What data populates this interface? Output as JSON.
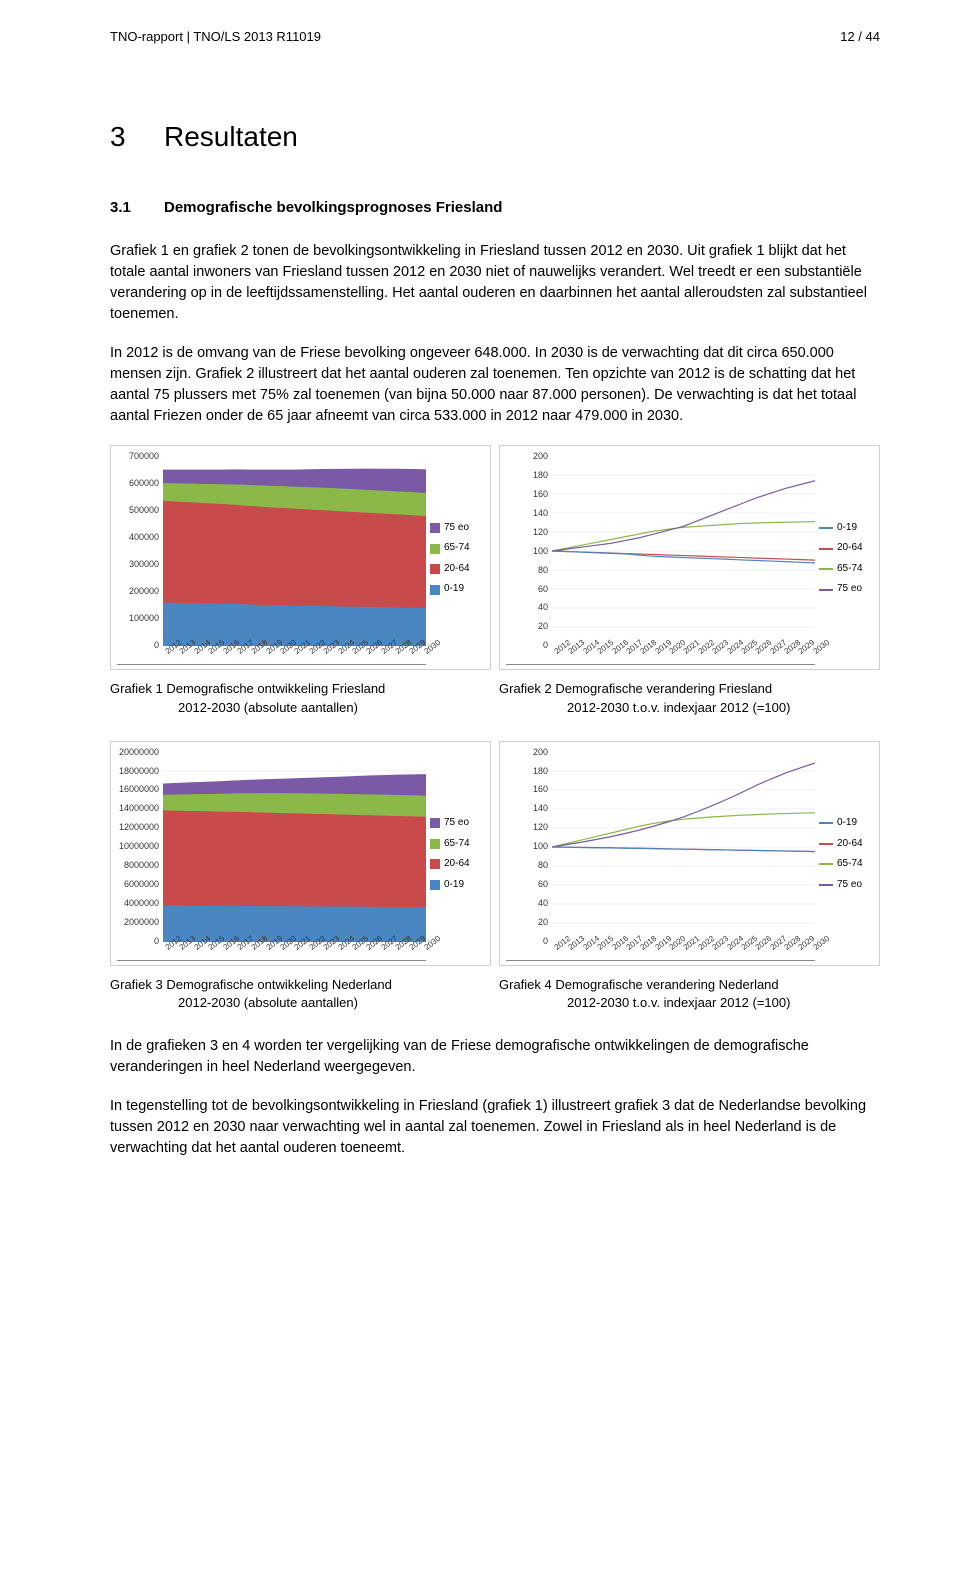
{
  "header": {
    "left": "TNO-rapport | TNO/LS 2013 R11019",
    "right": "12 / 44"
  },
  "section": {
    "num": "3",
    "title": "Resultaten"
  },
  "subsection": {
    "num": "3.1",
    "title": "Demografische bevolkingsprognoses Friesland"
  },
  "para1": "Grafiek 1 en grafiek 2 tonen de bevolkingsontwikkeling in Friesland tussen 2012 en 2030. Uit grafiek 1 blijkt dat het totale aantal inwoners van Friesland tussen 2012 en 2030 niet of nauwelijks verandert. Wel treedt er een substantiële verandering op in de leeftijdssamenstelling. Het aantal ouderen en daarbinnen het aantal alleroudsten zal substantieel toenemen.",
  "para2": "In 2012 is de omvang van de Friese bevolking ongeveer 648.000. In 2030 is de verwachting dat dit circa 650.000 mensen zijn. Grafiek 2 illustreert dat het aantal ouderen zal toenemen. Ten opzichte van 2012 is de schatting dat het aantal 75 plussers met 75% zal toenemen (van bijna 50.000 naar 87.000 personen). De verwachting is dat het totaal aantal Friezen onder de 65 jaar afneemt van circa 533.000 in 2012 naar 479.000 in 2030.",
  "years": [
    "2012",
    "2013",
    "2014",
    "2015",
    "2016",
    "2017",
    "2018",
    "2019",
    "2020",
    "2021",
    "2022",
    "2023",
    "2024",
    "2025",
    "2026",
    "2027",
    "2028",
    "2029",
    "2030"
  ],
  "legend_demo": [
    {
      "label": "75 eo",
      "color": "#7a5aa6"
    },
    {
      "label": "65-74",
      "color": "#8ab94a"
    },
    {
      "label": "20-64",
      "color": "#c84a4a"
    },
    {
      "label": "0-19",
      "color": "#4a86c1"
    }
  ],
  "legend_lines": [
    {
      "label": "0-19",
      "color": "#4a86c1"
    },
    {
      "label": "20-64",
      "color": "#c84a4a"
    },
    {
      "label": "65-74",
      "color": "#8ab94a"
    },
    {
      "label": "75 eo",
      "color": "#7a5aa6"
    }
  ],
  "chart1": {
    "type": "stacked-area",
    "ymax": 700000,
    "ytick_step": 100000,
    "yticks": [
      "700000",
      "600000",
      "500000",
      "400000",
      "300000",
      "200000",
      "100000",
      "0"
    ],
    "series": {
      "019": [
        160000,
        159000,
        158000,
        157000,
        156000,
        155000,
        153000,
        151000,
        150000,
        149000,
        148000,
        147000,
        146000,
        145000,
        144000,
        143000,
        142000,
        141000,
        140000
      ],
      "2064": [
        375000,
        373000,
        371000,
        369000,
        367000,
        365000,
        363000,
        361000,
        359000,
        357000,
        355000,
        353000,
        351000,
        349000,
        347000,
        345000,
        343000,
        341000,
        339000
      ],
      "6574": [
        65000,
        67000,
        69000,
        71000,
        73000,
        75000,
        77000,
        79000,
        80000,
        81000,
        82000,
        83000,
        83500,
        84000,
        84300,
        84600,
        84800,
        84900,
        85000
      ],
      "75eo": [
        50000,
        51000,
        52000,
        53000,
        54000,
        55500,
        57000,
        59000,
        61000,
        63000,
        66000,
        69000,
        72000,
        75000,
        78000,
        80500,
        83000,
        85000,
        87000
      ]
    },
    "colors": {
      "019": "#4a86c1",
      "2064": "#c84a4a",
      "6574": "#8ab94a",
      "75eo": "#7a5aa6"
    }
  },
  "chart2": {
    "type": "line",
    "ymin": 0,
    "ymax": 200,
    "ytick_step": 20,
    "yticks": [
      "200",
      "180",
      "160",
      "140",
      "120",
      "100",
      "80",
      "60",
      "40",
      "20",
      "0"
    ],
    "series": {
      "019": [
        100,
        99.4,
        98.8,
        98.1,
        97.5,
        96.9,
        95.6,
        94.4,
        93.8,
        93.1,
        92.5,
        91.9,
        91.3,
        90.6,
        90.0,
        89.4,
        88.8,
        88.1,
        87.5
      ],
      "2064": [
        100,
        99.5,
        98.9,
        98.4,
        97.9,
        97.3,
        96.8,
        96.3,
        95.7,
        95.2,
        94.7,
        94.1,
        93.6,
        93.1,
        92.5,
        92.0,
        91.5,
        90.9,
        90.4
      ],
      "6574": [
        100,
        103,
        106,
        109,
        112,
        115,
        118,
        121,
        123,
        125,
        126,
        127,
        128,
        129,
        129.5,
        130,
        130.3,
        130.6,
        131
      ],
      "75eo": [
        100,
        102,
        104,
        106,
        108,
        111,
        114,
        118,
        122,
        126,
        132,
        138,
        144,
        150,
        156,
        161,
        166,
        170,
        174
      ]
    },
    "colors": {
      "019": "#4a86c1",
      "2064": "#c84a4a",
      "6574": "#8ab94a",
      "75eo": "#7a5aa6"
    }
  },
  "chart3": {
    "type": "stacked-area",
    "ymax": 20000000,
    "ytick_step": 2000000,
    "yticks": [
      "20000000",
      "18000000",
      "16000000",
      "14000000",
      "12000000",
      "10000000",
      "8000000",
      "6000000",
      "4000000",
      "2000000",
      "0"
    ],
    "series": {
      "019": [
        3850000,
        3840000,
        3830000,
        3820000,
        3810000,
        3800000,
        3790000,
        3780000,
        3770000,
        3760000,
        3750000,
        3740000,
        3730000,
        3720000,
        3710000,
        3700000,
        3690000,
        3680000,
        3670000
      ],
      "2064": [
        10000000,
        9980000,
        9960000,
        9940000,
        9920000,
        9900000,
        9870000,
        9840000,
        9810000,
        9780000,
        9750000,
        9720000,
        9690000,
        9660000,
        9630000,
        9600000,
        9570000,
        9540000,
        9510000
      ],
      "6574": [
        1640000,
        1700000,
        1760000,
        1820000,
        1880000,
        1940000,
        2000000,
        2050000,
        2090000,
        2120000,
        2140000,
        2160000,
        2175000,
        2190000,
        2200000,
        2210000,
        2218000,
        2225000,
        2230000
      ],
      "75eo": [
        1200000,
        1230000,
        1260000,
        1295000,
        1330000,
        1370000,
        1415000,
        1465000,
        1520000,
        1580000,
        1650000,
        1725000,
        1805000,
        1890000,
        1980000,
        2060000,
        2135000,
        2200000,
        2260000
      ]
    },
    "colors": {
      "019": "#4a86c1",
      "2064": "#c84a4a",
      "6574": "#8ab94a",
      "75eo": "#7a5aa6"
    }
  },
  "chart4": {
    "type": "line",
    "ymin": 0,
    "ymax": 200,
    "ytick_step": 20,
    "yticks": [
      "200",
      "180",
      "160",
      "140",
      "120",
      "100",
      "80",
      "60",
      "40",
      "20",
      "0"
    ],
    "series": {
      "019": [
        100,
        99.7,
        99.5,
        99.2,
        99.0,
        98.7,
        98.4,
        98.2,
        97.9,
        97.7,
        97.4,
        97.1,
        96.9,
        96.6,
        96.4,
        96.1,
        95.8,
        95.6,
        95.3
      ],
      "2064": [
        100,
        99.8,
        99.6,
        99.4,
        99.2,
        99.0,
        98.7,
        98.4,
        98.1,
        97.8,
        97.5,
        97.2,
        96.9,
        96.6,
        96.3,
        96.0,
        95.7,
        95.4,
        95.1
      ],
      "6574": [
        100,
        103.7,
        107.3,
        111.0,
        114.6,
        118.3,
        122.0,
        125.0,
        127.4,
        129.3,
        130.5,
        131.7,
        132.6,
        133.5,
        134.1,
        134.8,
        135.2,
        135.7,
        136.0
      ],
      "75eo": [
        100,
        102.5,
        105.0,
        107.9,
        110.8,
        114.2,
        117.9,
        122.1,
        126.7,
        131.7,
        137.5,
        143.8,
        150.4,
        157.5,
        165.0,
        171.7,
        177.9,
        183.3,
        188.3
      ]
    },
    "colors": {
      "019": "#4a86c1",
      "2064": "#c84a4a",
      "6574": "#8ab94a",
      "75eo": "#7a5aa6"
    }
  },
  "caption1": {
    "main": "Grafiek 1  Demografische ontwikkeling Friesland",
    "sub": "2012-2030 (absolute aantallen)"
  },
  "caption2": {
    "main": "Grafiek 2  Demografische verandering Friesland",
    "sub": "2012-2030 t.o.v. indexjaar 2012 (=100)"
  },
  "caption3": {
    "main": "Grafiek 3  Demografische ontwikkeling Nederland",
    "sub": "2012-2030 (absolute aantallen)"
  },
  "caption4": {
    "main": "Grafiek 4   Demografische verandering  Nederland",
    "sub": "2012-2030 t.o.v. indexjaar 2012 (=100)"
  },
  "para3": "In de grafieken 3 en 4 worden ter vergelijking van de Friese demografische ontwikkelingen de demografische veranderingen in heel Nederland weergegeven.",
  "para4": "In tegenstelling tot de bevolkingsontwikkeling in Friesland (grafiek 1) illustreert grafiek 3 dat de Nederlandse bevolking tussen 2012 en 2030 naar verwachting wel in aantal zal toenemen. Zowel in Friesland als in heel Nederland is de verwachting dat het aantal ouderen toeneemt."
}
